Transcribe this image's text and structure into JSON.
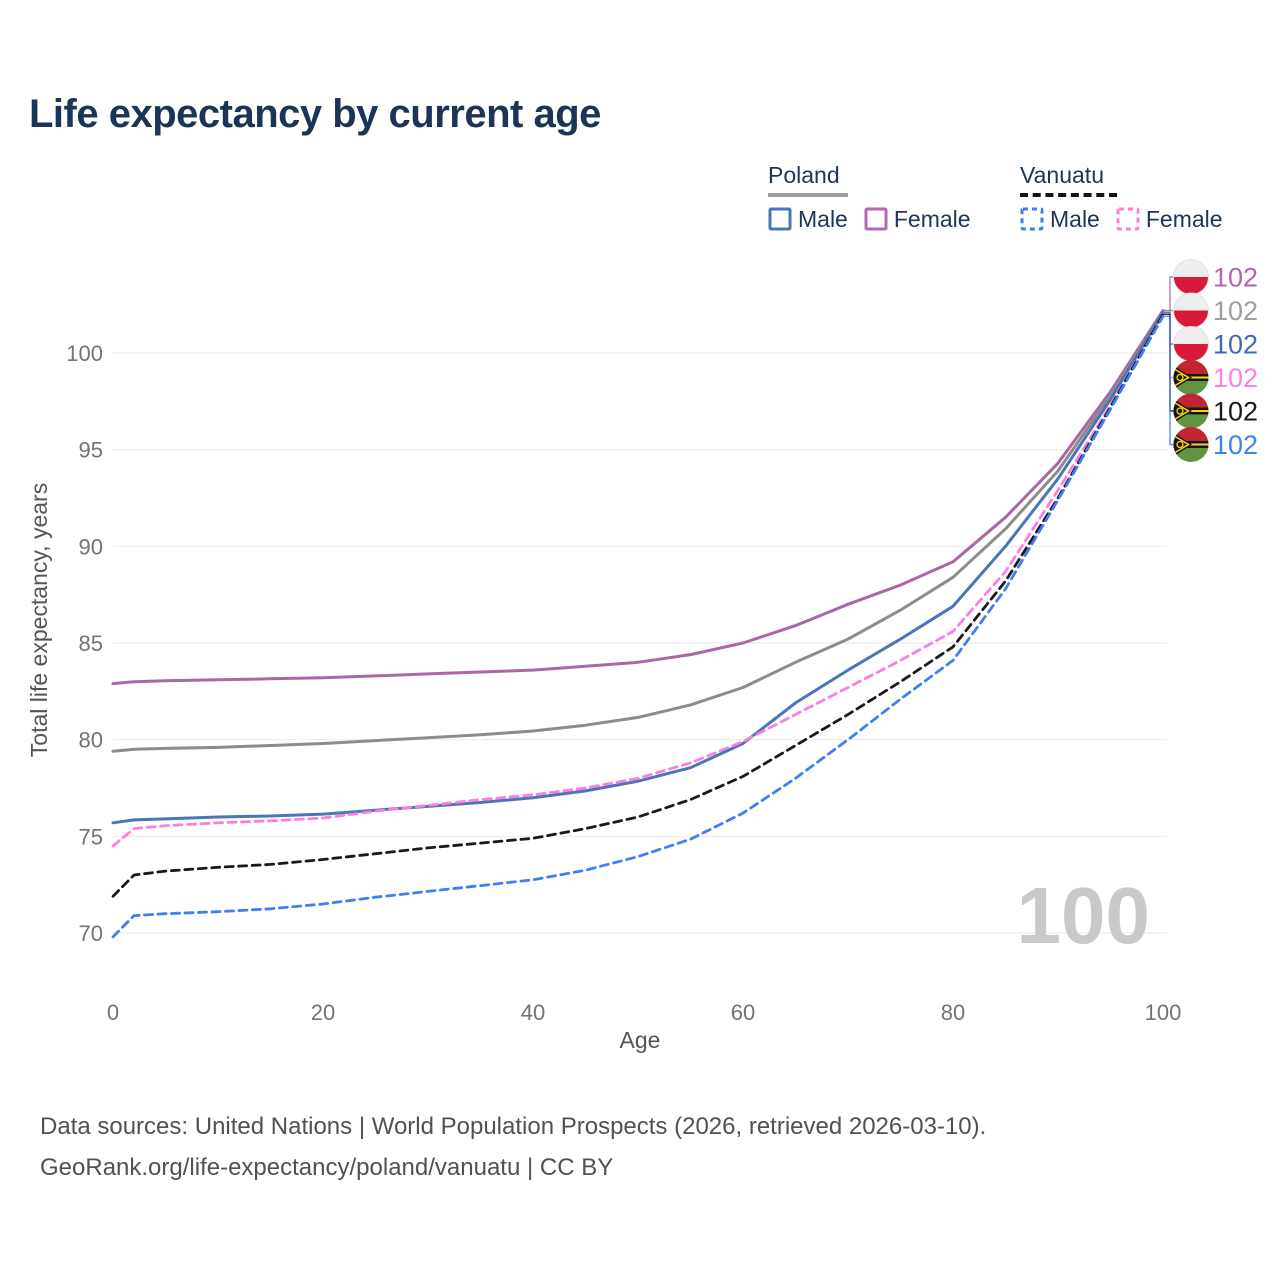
{
  "title": "Life expectancy by current age",
  "watermark": "100",
  "legend": {
    "groups": [
      {
        "id": "poland",
        "label": "Poland",
        "underline_style": "solid",
        "underline_color": "#9e9e9e",
        "items": [
          {
            "label": "Male",
            "color": "#4a76b8",
            "dash": null
          },
          {
            "label": "Female",
            "color": "#b36ab0",
            "dash": null
          }
        ]
      },
      {
        "id": "vanuatu",
        "label": "Vanuatu",
        "underline_style": "dashed",
        "underline_color": "#141414",
        "items": [
          {
            "label": "Male",
            "color": "#3d7ff5",
            "dash": "5 4"
          },
          {
            "label": "Female",
            "color": "#ff7de1",
            "dash": "5 4"
          }
        ]
      }
    ]
  },
  "footer": {
    "line1": "Data sources: United Nations | World Population Prospects (2026, retrieved 2026-03-10).",
    "line2": "GeoRank.org/life-expectancy/poland/vanuatu | CC BY"
  },
  "chart_data": {
    "type": "line",
    "title": "Life expectancy by current age",
    "xlabel": "Age",
    "ylabel": "Total life expectancy, years",
    "xlim": [
      0,
      100
    ],
    "ylim": [
      69,
      103
    ],
    "grid": true,
    "legend_position": "top-right",
    "x_ticks": [
      0,
      20,
      40,
      60,
      80,
      100
    ],
    "y_ticks": [
      70,
      75,
      80,
      85,
      90,
      95,
      100
    ],
    "ages": [
      0,
      2,
      5,
      10,
      15,
      20,
      25,
      30,
      35,
      40,
      45,
      50,
      55,
      60,
      65,
      70,
      75,
      80,
      85,
      90,
      95,
      100
    ],
    "series": [
      {
        "id": "poland-female",
        "name": "Poland Female",
        "flag": "poland",
        "sex": "female",
        "color": "#ab67a5",
        "label_color": "#b565a7",
        "dash": null,
        "end_label": "102",
        "values": [
          82.9,
          83.0,
          83.05,
          83.1,
          83.15,
          83.2,
          83.3,
          83.4,
          83.5,
          83.6,
          83.8,
          84.0,
          84.4,
          85.0,
          85.9,
          87.0,
          88.0,
          89.2,
          91.5,
          94.3,
          98.0,
          102.2
        ]
      },
      {
        "id": "poland-all",
        "name": "Poland",
        "flag": "poland",
        "sex": "all",
        "color": "#8c8c8c",
        "label_color": "#9e9e9e",
        "dash": null,
        "end_label": "102",
        "values": [
          79.4,
          79.5,
          79.55,
          79.6,
          79.7,
          79.8,
          79.95,
          80.1,
          80.25,
          80.45,
          80.75,
          81.15,
          81.8,
          82.7,
          84.0,
          85.2,
          86.7,
          88.4,
          90.9,
          93.9,
          97.8,
          102.1
        ]
      },
      {
        "id": "poland-male",
        "name": "Poland Male",
        "flag": "poland",
        "sex": "male",
        "color": "#4a76b8",
        "label_color": "#3f6db5",
        "dash": null,
        "end_label": "102",
        "values": [
          75.7,
          75.85,
          75.9,
          76.0,
          76.05,
          76.15,
          76.35,
          76.55,
          76.75,
          77.0,
          77.35,
          77.85,
          78.55,
          79.8,
          81.9,
          83.6,
          85.2,
          86.9,
          90.0,
          93.5,
          97.6,
          102.1
        ]
      },
      {
        "id": "vanuatu-female",
        "name": "Vanuatu Female",
        "flag": "vanuatu",
        "sex": "female",
        "color": "#ff7de1",
        "label_color": "#ff80df",
        "dash": "8 5.5",
        "end_label": "102",
        "values": [
          74.5,
          75.4,
          75.55,
          75.7,
          75.8,
          75.95,
          76.3,
          76.6,
          76.9,
          77.15,
          77.5,
          78.0,
          78.8,
          79.9,
          81.3,
          82.7,
          84.1,
          85.6,
          88.7,
          92.9,
          97.3,
          102.0
        ]
      },
      {
        "id": "vanuatu-all",
        "name": "Vanuatu",
        "flag": "vanuatu",
        "sex": "all",
        "color": "#1a1a1a",
        "label_color": "#1a1a1a",
        "dash": "8 5.5",
        "end_label": "102",
        "values": [
          71.9,
          73.0,
          73.2,
          73.4,
          73.55,
          73.8,
          74.1,
          74.4,
          74.65,
          74.9,
          75.4,
          76.0,
          76.9,
          78.1,
          79.7,
          81.3,
          83.0,
          84.8,
          88.2,
          92.5,
          97.2,
          102.0
        ]
      },
      {
        "id": "vanuatu-male",
        "name": "Vanuatu Male",
        "flag": "vanuatu",
        "sex": "male",
        "color": "#3d7ff5",
        "label_color": "#3b82f6",
        "dash": "8 5.5",
        "end_label": "102",
        "values": [
          69.8,
          70.9,
          71.0,
          71.1,
          71.25,
          71.5,
          71.85,
          72.15,
          72.45,
          72.75,
          73.25,
          73.95,
          74.85,
          76.2,
          78.0,
          80.0,
          82.1,
          84.1,
          87.8,
          92.4,
          97.1,
          101.9
        ]
      }
    ]
  }
}
